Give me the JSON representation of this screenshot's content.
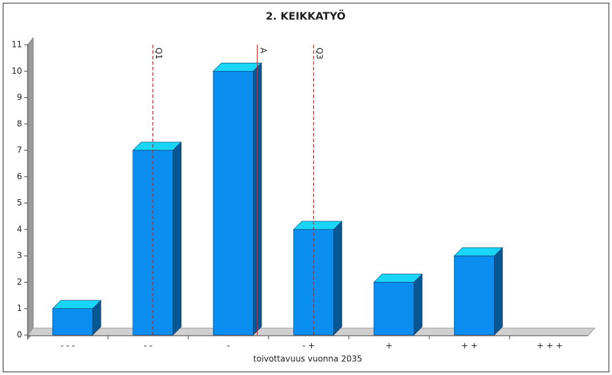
{
  "chart_data": {
    "type": "bar",
    "title": "2. KEIKKATYÖ",
    "x_label": "toivottavuus vuonna 2035",
    "categories": [
      "- - -",
      "- -",
      "-",
      "- +",
      "+",
      "+ +",
      "+ + +"
    ],
    "values": [
      1,
      7,
      10,
      4,
      2,
      3,
      0
    ],
    "color": "#0a8ef0",
    "ylim": [
      0,
      11
    ],
    "yticks": [
      0,
      1,
      2,
      3,
      4,
      5,
      6,
      7,
      8,
      9,
      10,
      11
    ],
    "xlim": [
      0.5,
      7.5
    ],
    "markers": [
      {
        "label": "Q1",
        "x": 2,
        "color": "#d62020",
        "style": "dashed"
      },
      {
        "label": "A",
        "x": 3.3,
        "color": "#d62020",
        "style": "solid"
      },
      {
        "label": "Q3",
        "x": 4,
        "color": "#d62020",
        "style": "dashed"
      }
    ]
  }
}
